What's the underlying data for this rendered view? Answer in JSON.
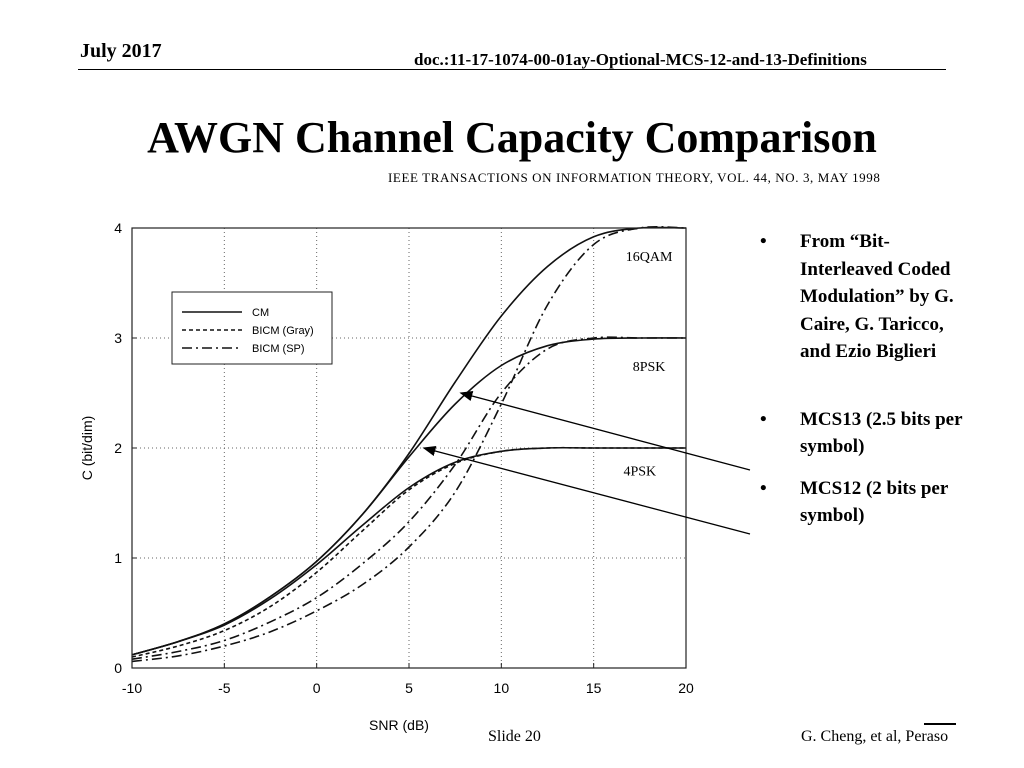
{
  "header": {
    "date": "July 2017",
    "doc": "doc.:11-17-1074-00-01ay-Optional-MCS-12-and-13-Definitions"
  },
  "title": "AWGN Channel Capacity Comparison",
  "source": "IEEE TRANSACTIONS ON INFORMATION THEORY, VOL. 44, NO. 3, MAY 1998",
  "bullets": [
    "From “Bit-Interleaved Coded Modulation” by G. Caire, G. Taricco, and Ezio Biglieri",
    "MCS13 (2.5 bits per symbol)",
    "MCS12 (2 bits per symbol)"
  ],
  "footer": {
    "slide": "Slide 20",
    "author": "G. Cheng, et al, Peraso"
  },
  "chart_data": {
    "type": "line",
    "title": "",
    "xlabel": "SNR (dB)",
    "ylabel": "C (bit/dim)",
    "xlim": [
      -10,
      20
    ],
    "ylim": [
      0,
      4
    ],
    "xticks": [
      -10,
      -5,
      0,
      5,
      10,
      15,
      20
    ],
    "yticks": [
      0,
      1,
      2,
      3,
      4
    ],
    "grid": true,
    "legend": {
      "position": "top-left",
      "entries": [
        {
          "label": "CM",
          "style": "solid"
        },
        {
          "label": "BICM (Gray)",
          "style": "dashed"
        },
        {
          "label": "BICM (SP)",
          "style": "dashdot"
        }
      ]
    },
    "series": [
      {
        "name": "16QAM CM",
        "style": "solid",
        "x": [
          -10,
          -7.5,
          -5,
          -2.5,
          0,
          2.5,
          5,
          7.5,
          10,
          12.5,
          15,
          17.5,
          20
        ],
        "y": [
          0.12,
          0.24,
          0.4,
          0.65,
          0.97,
          1.4,
          1.95,
          2.6,
          3.2,
          3.65,
          3.92,
          4.0,
          4.0
        ]
      },
      {
        "name": "16QAM BICM (SP)",
        "style": "dashdot",
        "x": [
          -10,
          -7.5,
          -5,
          -2.5,
          0,
          2.5,
          5,
          7.5,
          10,
          12.5,
          15,
          17.5,
          20
        ],
        "y": [
          0.06,
          0.11,
          0.2,
          0.33,
          0.52,
          0.76,
          1.1,
          1.6,
          2.4,
          3.3,
          3.85,
          4.0,
          4.0
        ]
      },
      {
        "name": "8PSK CM",
        "style": "solid",
        "x": [
          -10,
          -7.5,
          -5,
          -2.5,
          0,
          2.5,
          5,
          7.5,
          10,
          12.5,
          15,
          17.5,
          20
        ],
        "y": [
          0.12,
          0.24,
          0.4,
          0.65,
          0.97,
          1.4,
          1.92,
          2.4,
          2.75,
          2.93,
          2.99,
          3.0,
          3.0
        ]
      },
      {
        "name": "8PSK BICM (SP)",
        "style": "dashdot",
        "x": [
          -10,
          -7.5,
          -5,
          -2.5,
          0,
          2.5,
          5,
          7.5,
          10,
          12.5,
          15,
          17.5,
          20
        ],
        "y": [
          0.08,
          0.15,
          0.25,
          0.42,
          0.64,
          0.95,
          1.33,
          1.85,
          2.5,
          2.9,
          3.0,
          3.0,
          3.0
        ]
      },
      {
        "name": "4PSK CM",
        "style": "solid",
        "x": [
          -10,
          -7.5,
          -5,
          -2.5,
          0,
          2.5,
          5,
          7.5,
          10,
          12.5,
          15,
          17.5,
          20
        ],
        "y": [
          0.12,
          0.24,
          0.39,
          0.63,
          0.94,
          1.3,
          1.64,
          1.87,
          1.97,
          2.0,
          2.0,
          2.0,
          2.0
        ]
      },
      {
        "name": "4PSK BICM (Gray)",
        "style": "dashed",
        "x": [
          -10,
          -7.5,
          -5,
          -2.5,
          0,
          2.5,
          5,
          7.5,
          10,
          12.5,
          15,
          17.5,
          20
        ],
        "y": [
          0.1,
          0.2,
          0.34,
          0.56,
          0.87,
          1.25,
          1.62,
          1.86,
          1.97,
          2.0,
          2.0,
          2.0,
          2.0
        ]
      }
    ],
    "annotations": [
      {
        "text": "16QAM",
        "x": 18,
        "y": 3.7
      },
      {
        "text": "8PSK",
        "x": 18,
        "y": 2.7
      },
      {
        "text": "4PSK",
        "x": 17.5,
        "y": 1.75
      }
    ],
    "arrows": [
      {
        "target": "MCS13 (2.5 bits per symbol)",
        "x": 7.8,
        "y": 2.5
      },
      {
        "target": "MCS12 (2 bits per symbol)",
        "x": 5.8,
        "y": 2.0
      }
    ]
  }
}
